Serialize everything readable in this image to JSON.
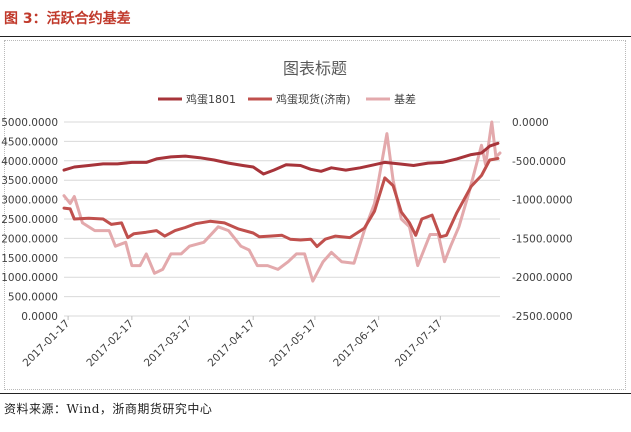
{
  "figure": {
    "title": "图 3：活跃合约基差",
    "source": "资料来源：Wind，浙商期货研究中心"
  },
  "chart_data": {
    "type": "line",
    "title": "图表标题",
    "legend_position": "top",
    "grid": true,
    "x_ticks": [
      "2017-01-17",
      "2017-02-17",
      "2017-03-17",
      "2017-04-17",
      "2017-05-17",
      "2017-06-17",
      "2017-07-17"
    ],
    "x_range": [
      "2017-01-15",
      "2017-08-15"
    ],
    "left_axis": {
      "min": 0,
      "max": 5000,
      "step": 500,
      "tick_labels": [
        "0.0000",
        "500.0000",
        "1000.0000",
        "1500.0000",
        "2000.0000",
        "2500.0000",
        "3000.0000",
        "3500.0000",
        "4000.0000",
        "4500.0000",
        "5000.0000"
      ]
    },
    "right_axis": {
      "min": -2500,
      "max": 0,
      "step": 500,
      "tick_labels": [
        "-2500.0000",
        "-2000.0000",
        "-1500.0000",
        "-1000.0000",
        "-500.0000",
        "0.0000"
      ]
    },
    "series": [
      {
        "name": "鸡蛋1801",
        "axis": "left",
        "color": "#a7343a",
        "points": [
          [
            "2017-01-15",
            3760
          ],
          [
            "2017-01-20",
            3840
          ],
          [
            "2017-01-27",
            3880
          ],
          [
            "2017-02-03",
            3920
          ],
          [
            "2017-02-10",
            3920
          ],
          [
            "2017-02-17",
            3960
          ],
          [
            "2017-02-24",
            3960
          ],
          [
            "2017-03-01",
            4050
          ],
          [
            "2017-03-08",
            4100
          ],
          [
            "2017-03-15",
            4120
          ],
          [
            "2017-03-22",
            4080
          ],
          [
            "2017-03-29",
            4020
          ],
          [
            "2017-04-05",
            3940
          ],
          [
            "2017-04-12",
            3880
          ],
          [
            "2017-04-17",
            3840
          ],
          [
            "2017-04-22",
            3660
          ],
          [
            "2017-04-27",
            3760
          ],
          [
            "2017-05-03",
            3900
          ],
          [
            "2017-05-10",
            3880
          ],
          [
            "2017-05-15",
            3780
          ],
          [
            "2017-05-20",
            3730
          ],
          [
            "2017-05-25",
            3820
          ],
          [
            "2017-06-01",
            3760
          ],
          [
            "2017-06-08",
            3820
          ],
          [
            "2017-06-15",
            3900
          ],
          [
            "2017-06-20",
            3960
          ],
          [
            "2017-06-27",
            3920
          ],
          [
            "2017-07-04",
            3880
          ],
          [
            "2017-07-11",
            3940
          ],
          [
            "2017-07-18",
            3960
          ],
          [
            "2017-07-25",
            4050
          ],
          [
            "2017-08-01",
            4160
          ],
          [
            "2017-08-06",
            4200
          ],
          [
            "2017-08-10",
            4380
          ],
          [
            "2017-08-14",
            4450
          ]
        ]
      },
      {
        "name": "鸡蛋现货(济南)",
        "axis": "left",
        "color": "#c0504d",
        "points": [
          [
            "2017-01-15",
            2780
          ],
          [
            "2017-01-18",
            2760
          ],
          [
            "2017-01-20",
            2500
          ],
          [
            "2017-01-27",
            2520
          ],
          [
            "2017-02-03",
            2500
          ],
          [
            "2017-02-07",
            2360
          ],
          [
            "2017-02-12",
            2400
          ],
          [
            "2017-02-15",
            2020
          ],
          [
            "2017-02-18",
            2120
          ],
          [
            "2017-02-24",
            2160
          ],
          [
            "2017-03-01",
            2200
          ],
          [
            "2017-03-05",
            2060
          ],
          [
            "2017-03-10",
            2200
          ],
          [
            "2017-03-15",
            2280
          ],
          [
            "2017-03-20",
            2380
          ],
          [
            "2017-03-27",
            2440
          ],
          [
            "2017-04-03",
            2400
          ],
          [
            "2017-04-10",
            2240
          ],
          [
            "2017-04-17",
            2140
          ],
          [
            "2017-04-20",
            2040
          ],
          [
            "2017-04-25",
            2060
          ],
          [
            "2017-05-01",
            2080
          ],
          [
            "2017-05-05",
            1980
          ],
          [
            "2017-05-10",
            1960
          ],
          [
            "2017-05-15",
            1980
          ],
          [
            "2017-05-18",
            1790
          ],
          [
            "2017-05-22",
            1980
          ],
          [
            "2017-05-27",
            2060
          ],
          [
            "2017-06-03",
            2020
          ],
          [
            "2017-06-10",
            2260
          ],
          [
            "2017-06-15",
            2700
          ],
          [
            "2017-06-20",
            3560
          ],
          [
            "2017-06-24",
            3360
          ],
          [
            "2017-06-28",
            2680
          ],
          [
            "2017-07-02",
            2400
          ],
          [
            "2017-07-05",
            2080
          ],
          [
            "2017-07-08",
            2500
          ],
          [
            "2017-07-13",
            2600
          ],
          [
            "2017-07-17",
            2040
          ],
          [
            "2017-07-20",
            2080
          ],
          [
            "2017-07-25",
            2660
          ],
          [
            "2017-08-01",
            3340
          ],
          [
            "2017-08-06",
            3620
          ],
          [
            "2017-08-10",
            4020
          ],
          [
            "2017-08-14",
            4060
          ]
        ]
      },
      {
        "name": "基差",
        "axis": "right",
        "color": "#e3a9ac",
        "points": [
          [
            "2017-01-15",
            -950
          ],
          [
            "2017-01-18",
            -1050
          ],
          [
            "2017-01-20",
            -960
          ],
          [
            "2017-01-24",
            -1300
          ],
          [
            "2017-01-30",
            -1400
          ],
          [
            "2017-02-06",
            -1400
          ],
          [
            "2017-02-09",
            -1600
          ],
          [
            "2017-02-14",
            -1550
          ],
          [
            "2017-02-17",
            -1850
          ],
          [
            "2017-02-21",
            -1850
          ],
          [
            "2017-02-24",
            -1700
          ],
          [
            "2017-02-28",
            -1950
          ],
          [
            "2017-03-04",
            -1900
          ],
          [
            "2017-03-08",
            -1700
          ],
          [
            "2017-03-13",
            -1700
          ],
          [
            "2017-03-17",
            -1600
          ],
          [
            "2017-03-24",
            -1550
          ],
          [
            "2017-03-31",
            -1350
          ],
          [
            "2017-04-05",
            -1400
          ],
          [
            "2017-04-11",
            -1600
          ],
          [
            "2017-04-15",
            -1650
          ],
          [
            "2017-04-19",
            -1850
          ],
          [
            "2017-04-24",
            -1850
          ],
          [
            "2017-04-29",
            -1900
          ],
          [
            "2017-05-04",
            -1800
          ],
          [
            "2017-05-08",
            -1700
          ],
          [
            "2017-05-12",
            -1700
          ],
          [
            "2017-05-16",
            -2050
          ],
          [
            "2017-05-21",
            -1800
          ],
          [
            "2017-05-25",
            -1680
          ],
          [
            "2017-05-30",
            -1800
          ],
          [
            "2017-06-05",
            -1820
          ],
          [
            "2017-06-10",
            -1400
          ],
          [
            "2017-06-15",
            -1050
          ],
          [
            "2017-06-18",
            -600
          ],
          [
            "2017-06-21",
            -150
          ],
          [
            "2017-06-24",
            -750
          ],
          [
            "2017-06-28",
            -1250
          ],
          [
            "2017-07-02",
            -1350
          ],
          [
            "2017-07-06",
            -1850
          ],
          [
            "2017-07-12",
            -1450
          ],
          [
            "2017-07-16",
            -1450
          ],
          [
            "2017-07-19",
            -1800
          ],
          [
            "2017-07-22",
            -1600
          ],
          [
            "2017-07-26",
            -1350
          ],
          [
            "2017-07-31",
            -900
          ],
          [
            "2017-08-03",
            -600
          ],
          [
            "2017-08-06",
            -300
          ],
          [
            "2017-08-08",
            -550
          ],
          [
            "2017-08-11",
            0
          ],
          [
            "2017-08-13",
            -450
          ],
          [
            "2017-08-15",
            -400
          ]
        ]
      }
    ]
  }
}
